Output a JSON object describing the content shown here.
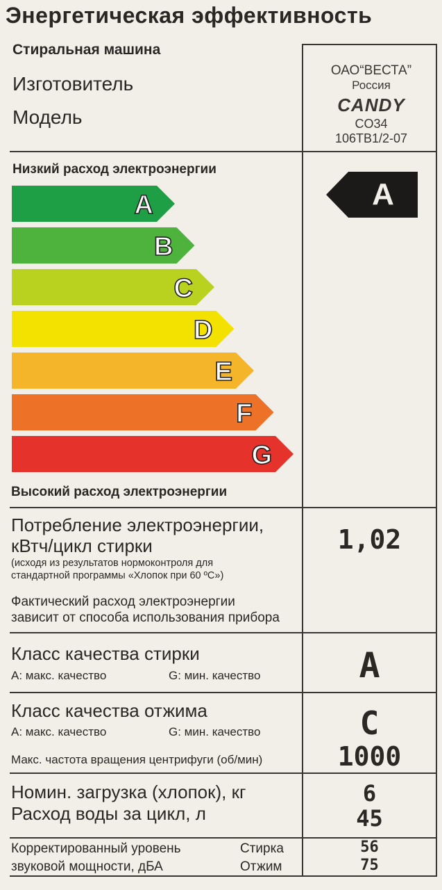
{
  "title": "Энергетическая эффективность",
  "appliance": "Стиральная машина",
  "manufacturer_label": "Изготовитель",
  "model_label": "Модель",
  "manufacturer": {
    "line1": "ОАО“ВЕСТА”",
    "line2": "Россия",
    "logo": "CANDY",
    "model": "CO34",
    "model_code": "106TB1/2-07"
  },
  "scale": {
    "low_label": "Низкий расход электроэнергии",
    "high_label": "Высокий расход электроэнергии",
    "classes": [
      {
        "letter": "A",
        "color": "#1f9f45"
      },
      {
        "letter": "B",
        "color": "#4db33d"
      },
      {
        "letter": "C",
        "color": "#b9d21f"
      },
      {
        "letter": "D",
        "color": "#f3e200"
      },
      {
        "letter": "E",
        "color": "#f5b52a"
      },
      {
        "letter": "F",
        "color": "#ee7128"
      },
      {
        "letter": "G",
        "color": "#e5322b"
      }
    ],
    "rating": "A"
  },
  "energy": {
    "label1": "Потребление электроэнергии,",
    "label2": "кВтч/цикл стирки",
    "note1": "(исходя из результатов нормоконтроля для",
    "note2": "стандартной программы «Хлопок при 60 ºC»)",
    "actual1": "Фактический расход электроэнергии",
    "actual2": "зависит от способа использования прибора",
    "value": "1,02"
  },
  "wash": {
    "label": "Класс качества стирки",
    "best": "A: макс. качество",
    "worst": "G: мин. качество",
    "value": "A"
  },
  "spin": {
    "label": "Класс качества отжима",
    "best": "A: макс. качество",
    "worst": "G: мин. качество",
    "value": "C",
    "rpm_label": "Макс. частота вращения центрифуги (об/мин)",
    "rpm": "1000"
  },
  "load": {
    "label": "Номин. загрузка (хлопок), кг",
    "value": "6",
    "water_label": "Расход воды за цикл, л",
    "water": "45"
  },
  "noise": {
    "label1": "Корректированный уровень",
    "label2": "звуковой мощности, дБА",
    "wash_label": "Стирка",
    "spin_label": "Отжим",
    "wash": "56",
    "spin": "75"
  }
}
